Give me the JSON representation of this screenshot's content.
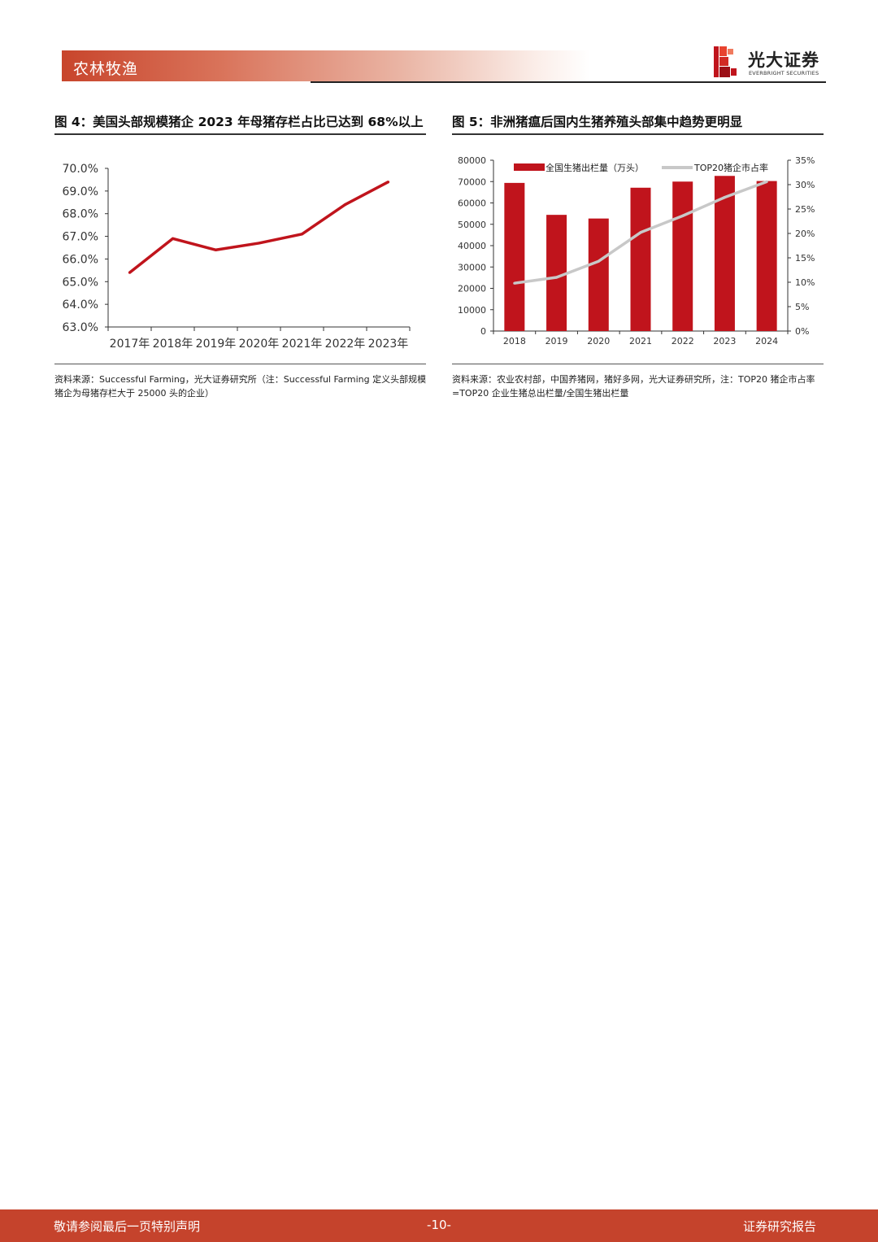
{
  "header": {
    "section": "农林牧渔",
    "logo_name": "光大证券",
    "logo_sub": "EVERBRIGHT SECURITIES"
  },
  "figures": {
    "fig4": {
      "title": "图 4：美国头部规模猪企 2023 年母猪存栏占比已达到 68%以上",
      "source": "资料来源：Successful Farming，光大证券研究所（注：Successful Farming 定义头部规模猪企为母猪存栏大于 25000 头的企业）"
    },
    "fig5": {
      "title": "图 5：非洲猪瘟后国内生猪养殖头部集中趋势更明显",
      "source": "资料来源：农业农村部，中国养猪网，猪好多网，光大证券研究所，注：TOP20 猪企市占率=TOP20 企业生猪总出栏量/全国生猪出栏量"
    }
  },
  "chart_data": [
    {
      "type": "line",
      "title": "图 4：美国头部规模猪企 2023 年母猪存栏占比已达到 68%以上",
      "categories": [
        "2017年",
        "2018年",
        "2019年",
        "2020年",
        "2021年",
        "2022年",
        "2023年"
      ],
      "values": [
        65.4,
        66.9,
        66.4,
        66.7,
        67.1,
        68.4,
        69.4
      ],
      "y_ticks": [
        "70.0%",
        "69.0%",
        "68.0%",
        "67.0%",
        "66.0%",
        "65.0%",
        "64.0%",
        "63.0%"
      ],
      "ylim": [
        63.0,
        70.0
      ],
      "series_color": "#c0141c",
      "grid": false,
      "legend": "none"
    },
    {
      "type": "bar",
      "title": "图 5：非洲猪瘟后国内生猪养殖头部集中趋势更明显",
      "categories": [
        "2018",
        "2019",
        "2020",
        "2021",
        "2022",
        "2023",
        "2024"
      ],
      "series": [
        {
          "name": "全国生猪出栏量（万头）",
          "type": "bar",
          "axis": "left",
          "color": "#c0141c",
          "values": [
            69382,
            54419,
            52704,
            67128,
            69995,
            72662,
            70256
          ]
        },
        {
          "name": "TOP20猪企市占率",
          "type": "line",
          "axis": "right",
          "color": "#c8c8c8",
          "values": [
            9.8,
            11.0,
            14.3,
            20.2,
            23.6,
            27.4,
            30.6
          ]
        }
      ],
      "y_left_ticks": [
        "80000",
        "70000",
        "60000",
        "50000",
        "40000",
        "30000",
        "20000",
        "10000",
        "0"
      ],
      "y_right_ticks": [
        "35%",
        "30%",
        "25%",
        "20%",
        "15%",
        "10%",
        "5%",
        "0%"
      ],
      "ylim_left": [
        0,
        80000
      ],
      "ylim_right": [
        0,
        35
      ],
      "legend": "top"
    }
  ],
  "footer": {
    "left": "敬请参阅最后一页特别声明",
    "page": "-10-",
    "right": "证券研究报告"
  }
}
